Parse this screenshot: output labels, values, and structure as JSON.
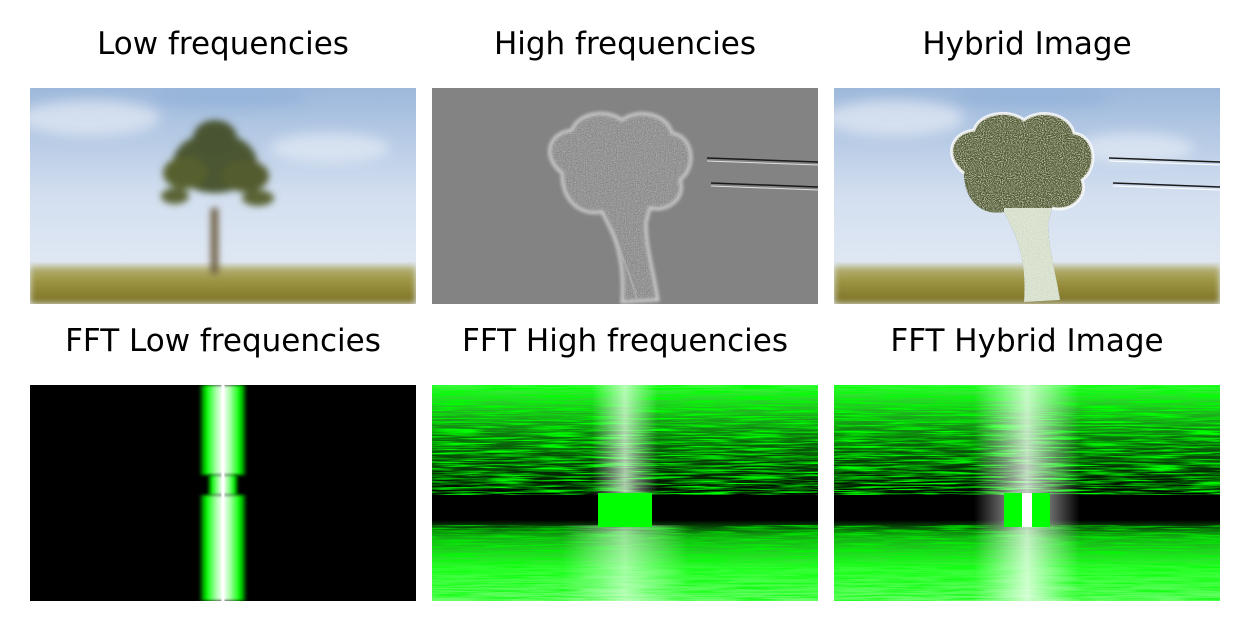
{
  "panels": [
    {
      "title": "Low frequencies",
      "content": "blurred-tree-photo"
    },
    {
      "title": "High frequencies",
      "content": "broccoli-edges"
    },
    {
      "title": "Hybrid Image",
      "content": "hybrid-tree-broccoli"
    },
    {
      "title": "FFT Low frequencies",
      "content": "fft-spectrum-low"
    },
    {
      "title": "FFT High frequencies",
      "content": "fft-spectrum-high"
    },
    {
      "title": "FFT Hybrid Image",
      "content": "fft-spectrum-hybrid"
    }
  ],
  "colors": {
    "sky": "#cfdcee",
    "grass": "#8f8a3c",
    "gray": "#808080",
    "fft_green": "#00ff00",
    "fft_black": "#000000"
  }
}
